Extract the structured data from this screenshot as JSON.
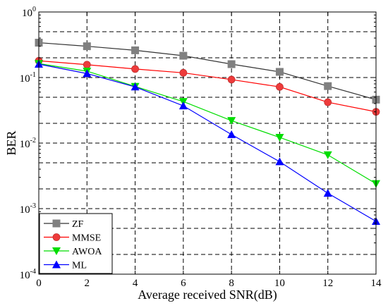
{
  "chart_data": {
    "type": "line",
    "title": "",
    "xlabel": "Average received SNR(dB)",
    "ylabel": "BER",
    "x": [
      0,
      2,
      4,
      6,
      8,
      10,
      12,
      14
    ],
    "xlim": [
      0,
      14
    ],
    "ylim": [
      0.0001,
      1
    ],
    "yscale": "log",
    "xticks": [
      "0",
      "2",
      "4",
      "6",
      "8",
      "10",
      "12",
      "14"
    ],
    "yticks": [
      {
        "base": "10",
        "exp": "0"
      },
      {
        "base": "10",
        "exp": "-1"
      },
      {
        "base": "10",
        "exp": "-2"
      },
      {
        "base": "10",
        "exp": "-3"
      },
      {
        "base": "10",
        "exp": "-4"
      }
    ],
    "grid": true,
    "legend_position": "bottom-left",
    "series": [
      {
        "name": "ZF",
        "color": "#333333",
        "marker": "square",
        "values": [
          0.34,
          0.3,
          0.26,
          0.215,
          0.16,
          0.122,
          0.074,
          0.046
        ]
      },
      {
        "name": "MMSE",
        "color": "#ff0000",
        "marker": "circle",
        "values": [
          0.18,
          0.157,
          0.135,
          0.118,
          0.093,
          0.072,
          0.042,
          0.03
        ]
      },
      {
        "name": "AWOA",
        "color": "#00dd00",
        "marker": "triangle-down",
        "values": [
          0.163,
          0.125,
          0.073,
          0.043,
          0.022,
          0.0122,
          0.0066,
          0.0024
        ]
      },
      {
        "name": "ML",
        "color": "#0000ff",
        "marker": "triangle-up",
        "values": [
          0.16,
          0.115,
          0.072,
          0.037,
          0.0135,
          0.0052,
          0.00172,
          0.00064
        ]
      }
    ]
  }
}
